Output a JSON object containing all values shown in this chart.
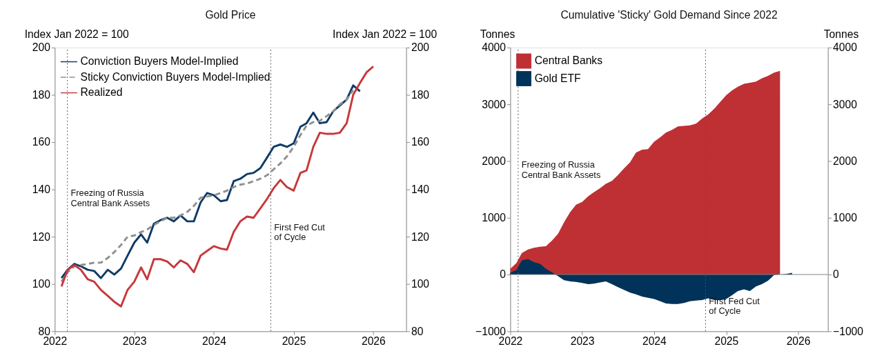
{
  "chart_data": [
    {
      "type": "line",
      "title": "Gold Price",
      "ylabel": "Index Jan 2022 = 100",
      "y2label": "Index Jan 2022 = 100",
      "x": [
        "2022-02",
        "2022-03",
        "2022-04",
        "2022-05",
        "2022-06",
        "2022-07",
        "2022-08",
        "2022-09",
        "2022-10",
        "2022-11",
        "2022-12",
        "2023-01",
        "2023-02",
        "2023-03",
        "2023-04",
        "2023-05",
        "2023-06",
        "2023-07",
        "2023-08",
        "2023-09",
        "2023-10",
        "2023-11",
        "2023-12",
        "2024-01",
        "2024-02",
        "2024-03",
        "2024-04",
        "2024-05",
        "2024-06",
        "2024-07",
        "2024-08",
        "2024-09",
        "2024-10",
        "2024-11",
        "2024-12",
        "2025-01",
        "2025-02",
        "2025-03",
        "2025-04",
        "2025-05",
        "2025-06",
        "2025-07",
        "2025-08",
        "2025-09",
        "2025-10",
        "2025-11",
        "2025-12",
        "2026-01"
      ],
      "xlim": [
        "2022-01",
        "2026-06"
      ],
      "xticks": [
        "2022",
        "2023",
        "2024",
        "2025",
        "2026"
      ],
      "ylim": [
        80,
        200
      ],
      "yticks": [
        80,
        100,
        120,
        140,
        160,
        180,
        200
      ],
      "y2lim": [
        80,
        200
      ],
      "y2ticks": [
        80,
        100,
        120,
        140,
        160,
        180,
        200
      ],
      "legend": "top left",
      "series": [
        {
          "name": "Conviction Buyers Model-Implied",
          "color": "#0d3b66",
          "line_style": "solid",
          "values": [
            102.5,
            106,
            108.5,
            107.5,
            106,
            105.5,
            102.5,
            106,
            104,
            106.5,
            112,
            117.5,
            121,
            117.5,
            125.5,
            127,
            128,
            126.5,
            129,
            126.5,
            126.5,
            134.5,
            138.5,
            137.5,
            135,
            135.5,
            143.5,
            144.5,
            146.5,
            147,
            149,
            153.5,
            158,
            159,
            158,
            159.5,
            166.5,
            168,
            172.5,
            168,
            168.5,
            173,
            175.5,
            178,
            184,
            181.5,
            null,
            null
          ]
        },
        {
          "name": "Sticky Conviction Buyers Model-Implied",
          "color": "#8f8f8f",
          "line_style": "dashed",
          "values": [
            101,
            105,
            107.5,
            108,
            108.5,
            109,
            109,
            111,
            113.5,
            116.5,
            120,
            120.5,
            122,
            123,
            125,
            126.5,
            128,
            128,
            129,
            130.5,
            133,
            136.5,
            137,
            137.5,
            138.5,
            139.5,
            141,
            142,
            142.5,
            143.5,
            144.5,
            146,
            148.5,
            151,
            154,
            158,
            163,
            167,
            168.5,
            169,
            171,
            173,
            176,
            178,
            182,
            null,
            null,
            null
          ]
        },
        {
          "name": "Realized",
          "color": "#c8373a",
          "line_style": "solid",
          "values": [
            99,
            106,
            108,
            106,
            102,
            101,
            97.5,
            95,
            92.5,
            90.5,
            97.5,
            101,
            107,
            102,
            110.5,
            110.5,
            109.5,
            107,
            110,
            108.5,
            105,
            112,
            114,
            116,
            115,
            114.5,
            122,
            126.5,
            128.5,
            128,
            132,
            136,
            140.5,
            144,
            141,
            139.5,
            147,
            148,
            158,
            164,
            163.5,
            163.5,
            164,
            168,
            180,
            185,
            189.5,
            192
          ]
        }
      ],
      "ref_lines": [
        {
          "axis": "x",
          "value": "2022-02-28",
          "label": "Freezing of Russia\nCentral Bank Assets",
          "color": "#555555",
          "line_style": "dotted"
        },
        {
          "axis": "x",
          "value": "2024-09-18",
          "label": "First Fed Cut\nof Cycle",
          "color": "#555555",
          "line_style": "dotted"
        }
      ]
    },
    {
      "type": "area",
      "title": "Cumulative 'Sticky' Gold Demand Since 2022",
      "ylabel": "Tonnes",
      "y2label": "Tonnes",
      "x": [
        "2022-01",
        "2022-02",
        "2022-03",
        "2022-04",
        "2022-05",
        "2022-06",
        "2022-07",
        "2022-08",
        "2022-09",
        "2022-10",
        "2022-11",
        "2022-12",
        "2023-01",
        "2023-02",
        "2023-03",
        "2023-04",
        "2023-05",
        "2023-06",
        "2023-07",
        "2023-08",
        "2023-09",
        "2023-10",
        "2023-11",
        "2023-12",
        "2024-01",
        "2024-02",
        "2024-03",
        "2024-04",
        "2024-05",
        "2024-06",
        "2024-07",
        "2024-08",
        "2024-09",
        "2024-10",
        "2024-11",
        "2024-12",
        "2025-01",
        "2025-02",
        "2025-03",
        "2025-04",
        "2025-05",
        "2025-06",
        "2025-07",
        "2025-08",
        "2025-09",
        "2025-10",
        "2025-11",
        "2025-12"
      ],
      "xlim": [
        "2022-01",
        "2026-06"
      ],
      "xticks": [
        "2022",
        "2023",
        "2024",
        "2025",
        "2026"
      ],
      "ylim": [
        -1000,
        4000
      ],
      "yticks": [
        -1000,
        0,
        1000,
        2000,
        3000,
        4000
      ],
      "y2lim": [
        -1000,
        4000
      ],
      "y2ticks": [
        -1000,
        0,
        1000,
        2000,
        3000,
        4000
      ],
      "legend": "top left",
      "series": [
        {
          "name": "Central Banks",
          "color": "#be3034",
          "values": [
            100,
            200,
            380,
            440,
            470,
            490,
            500,
            600,
            720,
            920,
            1100,
            1230,
            1280,
            1380,
            1450,
            1520,
            1600,
            1650,
            1750,
            1870,
            1980,
            2150,
            2200,
            2210,
            2340,
            2420,
            2500,
            2550,
            2610,
            2620,
            2630,
            2660,
            2750,
            2820,
            2920,
            3040,
            3160,
            3250,
            3310,
            3360,
            3380,
            3400,
            3460,
            3500,
            3560,
            3590,
            null,
            null
          ]
        },
        {
          "name": "Gold ETF",
          "color": "#00325a",
          "values": [
            30,
            80,
            250,
            270,
            220,
            190,
            100,
            40,
            -30,
            -100,
            -120,
            -130,
            -150,
            -170,
            -160,
            -140,
            -120,
            -170,
            -220,
            -270,
            -320,
            -350,
            -390,
            -410,
            -430,
            -470,
            -510,
            -520,
            -520,
            -500,
            -470,
            -460,
            -450,
            -420,
            -450,
            -450,
            -430,
            -360,
            -290,
            -260,
            -290,
            -210,
            -170,
            -110,
            -10,
            0,
            10,
            30
          ]
        }
      ],
      "ref_lines": [
        {
          "axis": "y",
          "value": 0,
          "color": "#808080",
          "line_style": "solid"
        },
        {
          "axis": "x",
          "value": "2022-02-10",
          "label": "Freezing of Russia\nCentral Bank Assets",
          "color": "#555555",
          "line_style": "dotted"
        },
        {
          "axis": "x",
          "value": "2024-09-18",
          "label": "First Fed Cut\nof Cycle",
          "color": "#555555",
          "line_style": "dotted"
        }
      ]
    }
  ]
}
